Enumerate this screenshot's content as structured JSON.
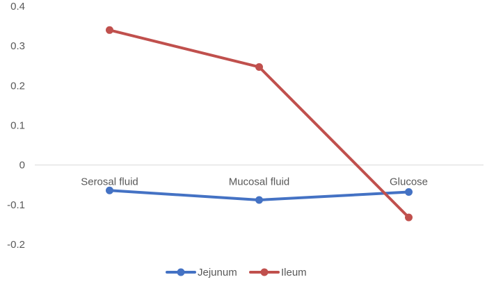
{
  "chart_data": {
    "type": "line",
    "categories": [
      "Serosal fluid",
      "Mucosal fluid",
      "Glucose"
    ],
    "series": [
      {
        "name": "Jejunum",
        "values": [
          -0.064,
          -0.088,
          -0.068
        ],
        "color": "#4472C4"
      },
      {
        "name": "Ileum",
        "values": [
          0.34,
          0.247,
          -0.132
        ],
        "color": "#C0504D"
      }
    ],
    "yticks": [
      "0.4",
      "0.3",
      "0.2",
      "0.1",
      "0",
      "-0.1",
      "-0.2"
    ],
    "ylim": [
      -0.2,
      0.4
    ],
    "grid": false,
    "legend": "bottom-center",
    "title": "",
    "xlabel": "",
    "ylabel": ""
  }
}
